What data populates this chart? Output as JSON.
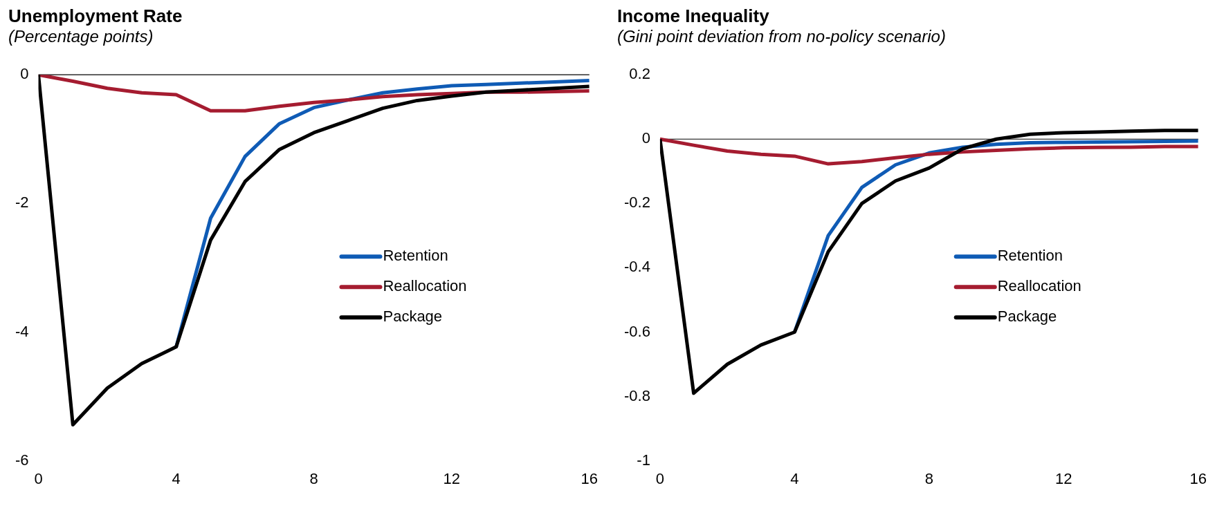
{
  "chart_data": [
    {
      "type": "line",
      "title": "Unemployment Rate",
      "subtitle": "(Percentage points)",
      "x": [
        0,
        1,
        2,
        3,
        4,
        5,
        6,
        7,
        8,
        9,
        10,
        11,
        12,
        13,
        14,
        15,
        16
      ],
      "xlim": [
        0,
        16
      ],
      "xticks": [
        0,
        4,
        8,
        12,
        16
      ],
      "ylim": [
        -6,
        0
      ],
      "yticks": [
        -6,
        -4,
        -2,
        0
      ],
      "grid": false,
      "legend": "right",
      "marker": "none",
      "line_style": "solid",
      "ref_lines": [
        {
          "axis": "y",
          "value": 0,
          "color": "#000000"
        }
      ],
      "series": [
        {
          "name": "Retention",
          "color": "#0f5bb5",
          "values": [
            null,
            null,
            null,
            null,
            -4.23,
            -2.23,
            -1.27,
            -0.76,
            -0.51,
            -0.39,
            -0.28,
            -0.22,
            -0.17,
            -0.15,
            -0.13,
            -0.11,
            -0.09
          ]
        },
        {
          "name": "Reallocation",
          "color": "#a51c30",
          "values": [
            0,
            -0.1,
            -0.21,
            -0.28,
            -0.31,
            -0.56,
            -0.56,
            -0.49,
            -0.43,
            -0.39,
            -0.34,
            -0.31,
            -0.29,
            -0.27,
            -0.27,
            -0.26,
            -0.25
          ]
        },
        {
          "name": "Package",
          "color": "#000000",
          "values": [
            0,
            -5.44,
            -4.87,
            -4.49,
            -4.23,
            -2.57,
            -1.66,
            -1.16,
            -0.9,
            -0.71,
            -0.52,
            -0.4,
            -0.33,
            -0.27,
            -0.24,
            -0.21,
            -0.18
          ]
        }
      ]
    },
    {
      "type": "line",
      "title": "Income Inequality",
      "subtitle": "(Gini point deviation from no-policy scenario)",
      "x": [
        0,
        1,
        2,
        3,
        4,
        5,
        6,
        7,
        8,
        9,
        10,
        11,
        12,
        13,
        14,
        15,
        16
      ],
      "xlim": [
        0,
        16
      ],
      "xticks": [
        0,
        4,
        8,
        12,
        16
      ],
      "ylim": [
        -1,
        0.2
      ],
      "yticks": [
        -1,
        -0.8,
        -0.6,
        -0.4,
        -0.2,
        0,
        0.2
      ],
      "grid": false,
      "legend": "right",
      "marker": "none",
      "line_style": "solid",
      "ref_lines": [
        {
          "axis": "y",
          "value": 0,
          "color": "#000000"
        }
      ],
      "series": [
        {
          "name": "Retention",
          "color": "#0f5bb5",
          "values": [
            null,
            null,
            null,
            null,
            -0.6,
            -0.3,
            -0.15,
            -0.08,
            -0.043,
            -0.025,
            -0.016,
            -0.011,
            -0.01,
            -0.009,
            -0.008,
            -0.007,
            -0.006
          ]
        },
        {
          "name": "Reallocation",
          "color": "#a51c30",
          "values": [
            0,
            -0.019,
            -0.037,
            -0.047,
            -0.053,
            -0.077,
            -0.07,
            -0.058,
            -0.047,
            -0.04,
            -0.035,
            -0.03,
            -0.027,
            -0.026,
            -0.025,
            -0.023,
            -0.023
          ]
        },
        {
          "name": "Package",
          "color": "#000000",
          "values": [
            0,
            -0.79,
            -0.7,
            -0.64,
            -0.6,
            -0.35,
            -0.2,
            -0.13,
            -0.09,
            -0.03,
            0.0,
            0.015,
            0.02,
            0.022,
            0.025,
            0.027,
            0.027
          ]
        }
      ]
    }
  ]
}
